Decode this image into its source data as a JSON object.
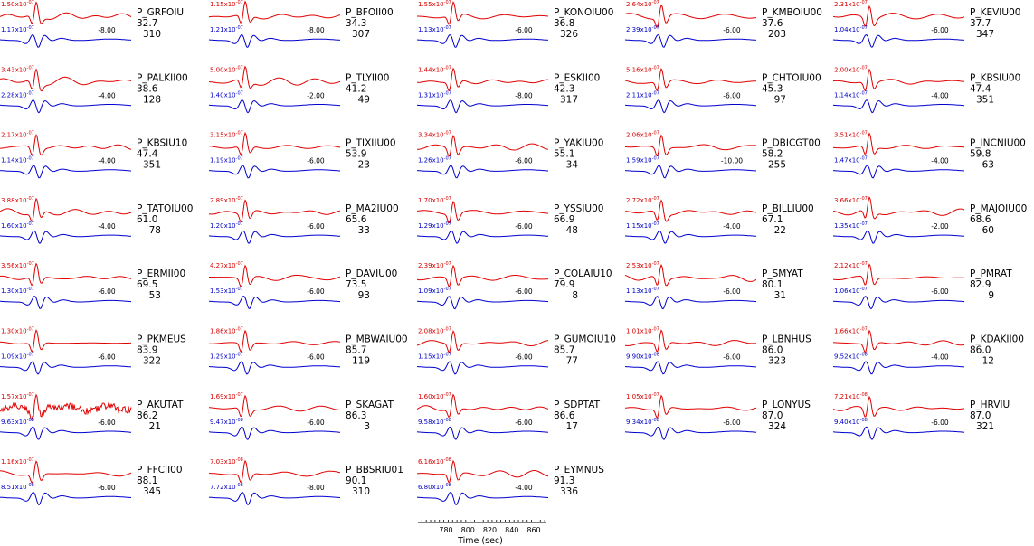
{
  "chart_data": {
    "type": "line",
    "xlabel": "Time (sec)",
    "x_ticks": [
      "780",
      "800",
      "820",
      "840",
      "860"
    ],
    "series_colors": {
      "observed": "#e00000",
      "synthetic": "#0000d0"
    },
    "stations": [
      {
        "name": "P_GRFOIU",
        "dist": "32.7",
        "az": "310",
        "obs_amp": "1.50x10^-07",
        "syn_amp": "1.17x10^-07",
        "shift": "-8.00"
      },
      {
        "name": "P_BFOII00",
        "dist": "34.3",
        "az": "307",
        "obs_amp": "1.15x10^-07",
        "syn_amp": "1.21x10^-07",
        "shift": "-8.00"
      },
      {
        "name": "P_KONOIU00",
        "dist": "36.8",
        "az": "326",
        "obs_amp": "1.55x10^-07",
        "syn_amp": "1.13x10^-07",
        "shift": "-6.00"
      },
      {
        "name": "P_KMBOIU00",
        "dist": "37.6",
        "az": "203",
        "obs_amp": "2.64x10^-07",
        "syn_amp": "2.39x10^-07",
        "shift": "-6.00"
      },
      {
        "name": "P_KEVIU00",
        "dist": "37.7",
        "az": "347",
        "obs_amp": "2.31x10^-07",
        "syn_amp": "1.04x10^-07",
        "shift": "-6.00"
      },
      {
        "name": "P_PALKII00",
        "dist": "38.6",
        "az": "128",
        "obs_amp": "3.43x10^-07",
        "syn_amp": "2.28x10^-07",
        "shift": "-4.00"
      },
      {
        "name": "P_TLYII00",
        "dist": "41.2",
        "az": "49",
        "obs_amp": "5.00x10^-07",
        "syn_amp": "1.40x10^-07",
        "shift": "-2.00"
      },
      {
        "name": "P_ESKII00",
        "dist": "42.3",
        "az": "317",
        "obs_amp": "1.44x10^-07",
        "syn_amp": "1.31x10^-07",
        "shift": "-8.00"
      },
      {
        "name": "P_CHTOIU00",
        "dist": "45.3",
        "az": "97",
        "obs_amp": "5.16x10^-07",
        "syn_amp": "2.11x10^-07",
        "shift": "-6.00"
      },
      {
        "name": "P_KBSIU00",
        "dist": "47.4",
        "az": "351",
        "obs_amp": "2.00x10^-07",
        "syn_amp": "1.14x10^-07",
        "shift": "-4.00"
      },
      {
        "name": "P_KBSIU10",
        "dist": "47.4",
        "az": "351",
        "obs_amp": "2.17x10^-07",
        "syn_amp": "1.14x10^-07",
        "shift": "-4.00"
      },
      {
        "name": "P_TIXIIU00",
        "dist": "53.9",
        "az": "23",
        "obs_amp": "3.15x10^-07",
        "syn_amp": "1.19x10^-07",
        "shift": "-6.00"
      },
      {
        "name": "P_YAKIU00",
        "dist": "55.1",
        "az": "34",
        "obs_amp": "3.34x10^-07",
        "syn_amp": "1.26x10^-07",
        "shift": "-6.00"
      },
      {
        "name": "P_DBICGT00",
        "dist": "58.2",
        "az": "255",
        "obs_amp": "2.06x10^-07",
        "syn_amp": "1.59x10^-07",
        "shift": "-10.00"
      },
      {
        "name": "P_INCNIU00",
        "dist": "59.8",
        "az": "63",
        "obs_amp": "3.51x10^-07",
        "syn_amp": "1.47x10^-07",
        "shift": "-4.00"
      },
      {
        "name": "P_TATOIU00",
        "dist": "61.0",
        "az": "78",
        "obs_amp": "3.88x10^-07",
        "syn_amp": "1.60x10^-07",
        "shift": "-4.00"
      },
      {
        "name": "P_MA2IU00",
        "dist": "65.6",
        "az": "33",
        "obs_amp": "2.89x10^-07",
        "syn_amp": "1.20x10^-07",
        "shift": "-6.00"
      },
      {
        "name": "P_YSSIU00",
        "dist": "66.9",
        "az": "48",
        "obs_amp": "1.70x10^-07",
        "syn_amp": "1.29x10^-07",
        "shift": "-6.00"
      },
      {
        "name": "P_BILLIU00",
        "dist": "67.1",
        "az": "22",
        "obs_amp": "2.72x10^-07",
        "syn_amp": "1.15x10^-07",
        "shift": "-4.00"
      },
      {
        "name": "P_MAJOIU00",
        "dist": "68.6",
        "az": "60",
        "obs_amp": "3.66x10^-07",
        "syn_amp": "1.35x10^-07",
        "shift": "-2.00"
      },
      {
        "name": "P_ERMII00",
        "dist": "69.5",
        "az": "53",
        "obs_amp": "3.56x10^-07",
        "syn_amp": "1.30x10^-07",
        "shift": "-6.00"
      },
      {
        "name": "P_DAVIU00",
        "dist": "73.5",
        "az": "93",
        "obs_amp": "4.27x10^-07",
        "syn_amp": "1.53x10^-07",
        "shift": "-6.00"
      },
      {
        "name": "P_COLAIU10",
        "dist": "79.9",
        "az": "8",
        "obs_amp": "2.39x10^-07",
        "syn_amp": "1.09x10^-07",
        "shift": "-6.00"
      },
      {
        "name": "P_SMYAT",
        "dist": "80.1",
        "az": "31",
        "obs_amp": "2.53x10^-07",
        "syn_amp": "1.13x10^-07",
        "shift": "-6.00"
      },
      {
        "name": "P_PMRAT",
        "dist": "82.9",
        "az": "9",
        "obs_amp": "2.12x10^-07",
        "syn_amp": "1.06x10^-07",
        "shift": "-6.00"
      },
      {
        "name": "P_PKMEUS",
        "dist": "83.9",
        "az": "322",
        "obs_amp": "1.30x10^-07",
        "syn_amp": "1.09x10^-07",
        "shift": "-6.00"
      },
      {
        "name": "P_MBWAIU00",
        "dist": "85.7",
        "az": "119",
        "obs_amp": "1.86x10^-07",
        "syn_amp": "1.29x10^-07",
        "shift": "-6.00"
      },
      {
        "name": "P_GUMOIU10",
        "dist": "85.7",
        "az": "77",
        "obs_amp": "2.08x10^-07",
        "syn_amp": "1.15x10^-07",
        "shift": "-6.00"
      },
      {
        "name": "P_LBNHUS",
        "dist": "86.0",
        "az": "323",
        "obs_amp": "1.01x10^-07",
        "syn_amp": "9.90x10^-08",
        "shift": "-6.00"
      },
      {
        "name": "P_KDAKII00",
        "dist": "86.0",
        "az": "12",
        "obs_amp": "1.66x10^-07",
        "syn_amp": "9.52x10^-08",
        "shift": "-4.00"
      },
      {
        "name": "P_AKUTAT",
        "dist": "86.2",
        "az": "21",
        "obs_amp": "1.57x10^-07",
        "syn_amp": "9.63x10^-08",
        "shift": "-6.00"
      },
      {
        "name": "P_SKAGAT",
        "dist": "86.3",
        "az": "3",
        "obs_amp": "1.69x10^-07",
        "syn_amp": "9.47x10^-08",
        "shift": "-6.00"
      },
      {
        "name": "P_SDPTAT",
        "dist": "86.6",
        "az": "17",
        "obs_amp": "1.60x10^-07",
        "syn_amp": "9.58x10^-08",
        "shift": "-6.00"
      },
      {
        "name": "P_LONYUS",
        "dist": "87.0",
        "az": "324",
        "obs_amp": "1.05x10^-07",
        "syn_amp": "9.34x10^-08",
        "shift": "-6.00"
      },
      {
        "name": "P_HRVIU",
        "dist": "87.0",
        "az": "321",
        "obs_amp": "7.21x10^-08",
        "syn_amp": "9.40x10^-08",
        "shift": "-6.00"
      },
      {
        "name": "P_FFCII00",
        "dist": "88.1",
        "az": "345",
        "obs_amp": "1.16x10^-07",
        "syn_amp": "8.51x10^-08",
        "shift": "-6.00"
      },
      {
        "name": "P_BBSRIU01",
        "dist": "90.1",
        "az": "310",
        "obs_amp": "7.03x10^-08",
        "syn_amp": "7.72x10^-08",
        "shift": "-8.00"
      },
      {
        "name": "P_EYMNUS",
        "dist": "91.3",
        "az": "336",
        "obs_amp": "6.16x10^-08",
        "syn_amp": "6.80x10^-08",
        "shift": "-4.00"
      }
    ]
  }
}
